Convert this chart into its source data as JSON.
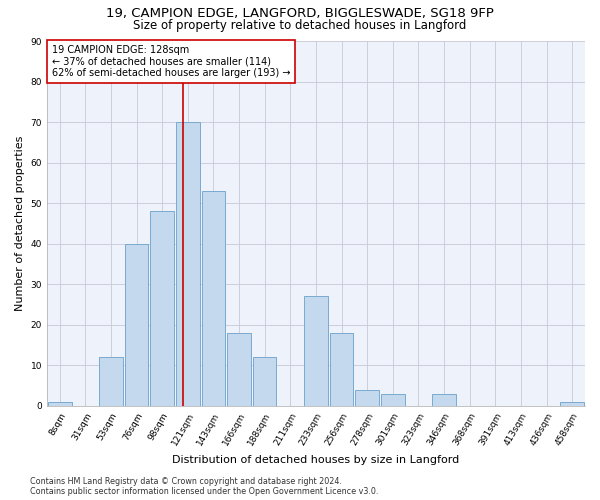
{
  "title_line1": "19, CAMPION EDGE, LANGFORD, BIGGLESWADE, SG18 9FP",
  "title_line2": "Size of property relative to detached houses in Langford",
  "xlabel": "Distribution of detached houses by size in Langford",
  "ylabel": "Number of detached properties",
  "bar_color": "#c5d9ee",
  "bar_edge_color": "#7aaad0",
  "grid_color": "#c8c8d8",
  "background_color": "#eef2fa",
  "annotation_box_color": "#cc0000",
  "vline_color": "#cc0000",
  "annotation_text": "19 CAMPION EDGE: 128sqm\n← 37% of detached houses are smaller (114)\n62% of semi-detached houses are larger (193) →",
  "footer_text": "Contains HM Land Registry data © Crown copyright and database right 2024.\nContains public sector information licensed under the Open Government Licence v3.0.",
  "categories": [
    "8sqm",
    "31sqm",
    "53sqm",
    "76sqm",
    "98sqm",
    "121sqm",
    "143sqm",
    "166sqm",
    "188sqm",
    "211sqm",
    "233sqm",
    "256sqm",
    "278sqm",
    "301sqm",
    "323sqm",
    "346sqm",
    "368sqm",
    "391sqm",
    "413sqm",
    "436sqm",
    "458sqm"
  ],
  "values": [
    1,
    0,
    12,
    40,
    48,
    70,
    53,
    18,
    12,
    0,
    27,
    18,
    4,
    3,
    0,
    3,
    0,
    0,
    0,
    0,
    1
  ],
  "n_bins": 21,
  "vline_bin": 5,
  "ylim": [
    0,
    90
  ],
  "yticks": [
    0,
    10,
    20,
    30,
    40,
    50,
    60,
    70,
    80,
    90
  ],
  "fig_width": 6.0,
  "fig_height": 5.0,
  "title_fontsize": 9.5,
  "subtitle_fontsize": 8.5,
  "axis_label_fontsize": 8,
  "tick_fontsize": 6.5,
  "footer_fontsize": 5.8,
  "annotation_fontsize": 7
}
